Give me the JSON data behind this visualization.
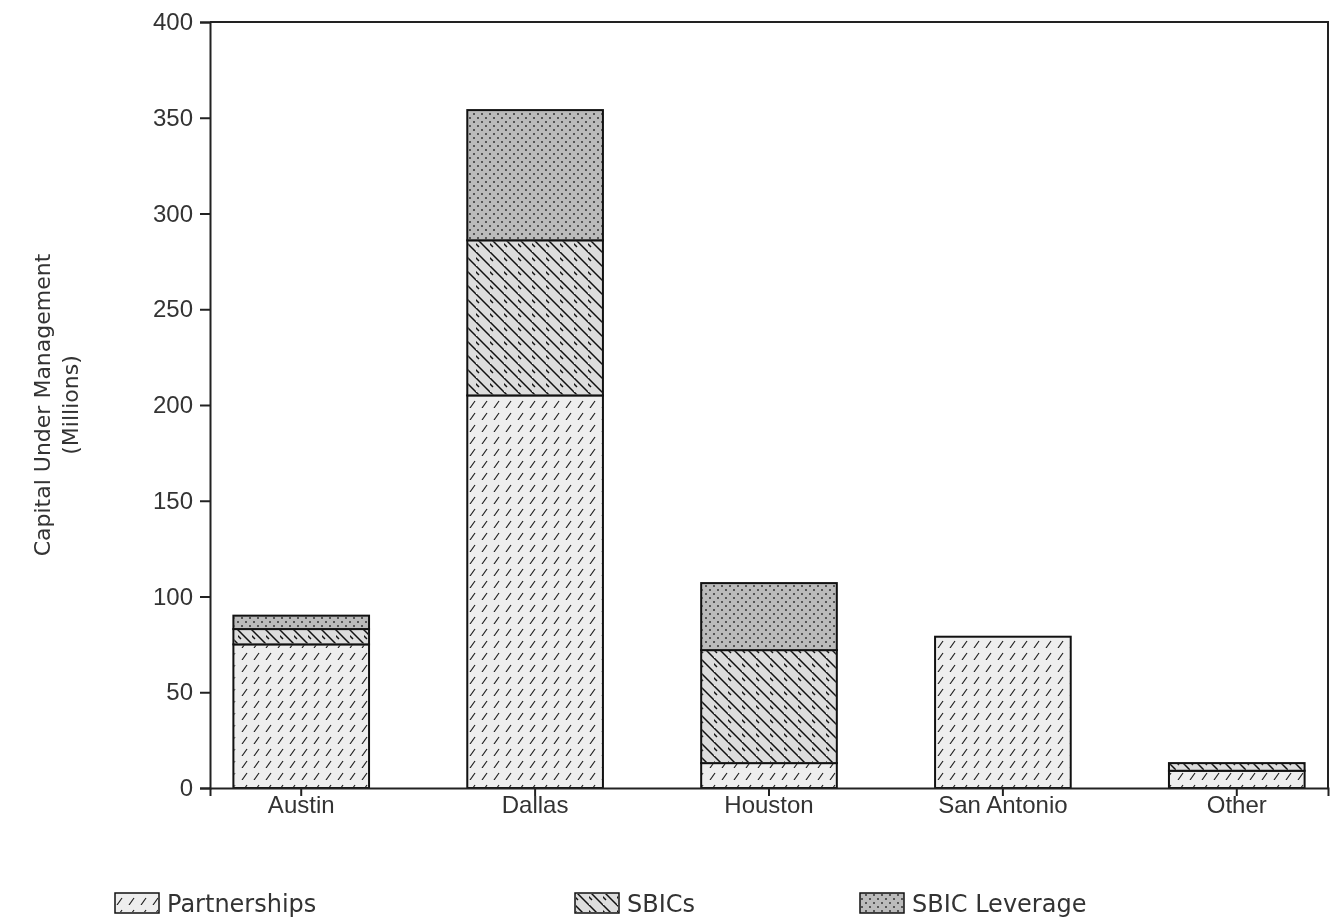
{
  "chart_data": {
    "type": "bar",
    "stacked": true,
    "ylabel": "Capital Under Management\n(Millions)",
    "categories": [
      "Austin",
      "Dallas",
      "Houston",
      "San Antonio",
      "Other"
    ],
    "series": [
      {
        "name": "Partnerships",
        "color": "#eeeeee",
        "values": [
          75,
          205,
          13,
          79,
          9
        ]
      },
      {
        "name": "SBICs",
        "color": "#dddddd",
        "values": [
          8,
          81,
          59,
          0,
          4
        ]
      },
      {
        "name": "SBIC Leverage",
        "color": "#bbbbbb",
        "values": [
          7,
          68,
          35,
          0,
          0
        ]
      }
    ],
    "ylim": [
      0,
      400
    ],
    "yticks": [
      0,
      50,
      100,
      150,
      200,
      250,
      300,
      350,
      400
    ],
    "grid": false,
    "legend": "bottom"
  }
}
